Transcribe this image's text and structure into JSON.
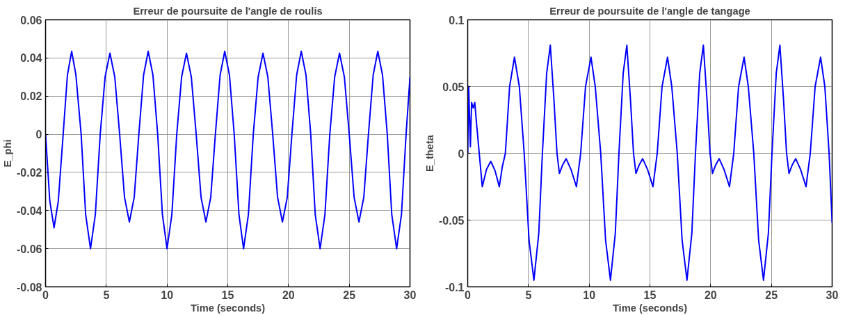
{
  "chart_data": [
    {
      "type": "line",
      "title": "Erreur de poursuite de l'angle de roulis",
      "xlabel": "Time (seconds)",
      "ylabel": "E_phi",
      "color": "#0000ff",
      "grid": true,
      "xlim": [
        0,
        30
      ],
      "ylim": [
        -0.08,
        0.06
      ],
      "xticks": [
        0,
        5,
        10,
        15,
        20,
        25,
        30
      ],
      "yticks": [
        {
          "value": -0.08,
          "label": "-0.08"
        },
        {
          "value": -0.06,
          "label": "-0.06"
        },
        {
          "value": -0.04,
          "label": "-0.04"
        },
        {
          "value": -0.02,
          "label": "-0.02"
        },
        0,
        {
          "value": 0.02,
          "label": "0.02"
        },
        {
          "value": 0.04,
          "label": "0.04"
        },
        {
          "value": 0.06,
          "label": "0.06"
        }
      ],
      "x": [
        0,
        0.35,
        0.7,
        1.05,
        1.45,
        1.8,
        2.15,
        2.5,
        2.93,
        3.3,
        3.7,
        4.1,
        4.5,
        4.9,
        5.3,
        5.7,
        6.1,
        6.5,
        6.9,
        7.3,
        7.68,
        8.07,
        8.45,
        8.84,
        9.23,
        9.62,
        10.0,
        10.4,
        10.8,
        11.2,
        11.6,
        12.0,
        12.4,
        12.8,
        13.2,
        13.6,
        13.98,
        14.37,
        14.75,
        15.14,
        15.53,
        15.92,
        16.3,
        16.7,
        17.1,
        17.5,
        17.9,
        18.3,
        18.7,
        19.1,
        19.5,
        19.9,
        20.28,
        20.67,
        21.05,
        21.44,
        21.83,
        22.2,
        22.6,
        23.0,
        23.4,
        23.8,
        24.2,
        24.6,
        25.0,
        25.4,
        25.8,
        26.2,
        26.58,
        26.97,
        27.35,
        27.74,
        28.13,
        28.5,
        28.9,
        29.3,
        29.68,
        30
      ],
      "values": [
        0,
        -0.035,
        -0.049,
        -0.035,
        0,
        0.031,
        0.0435,
        0.031,
        0,
        -0.042,
        -0.06,
        -0.042,
        0,
        0.03,
        0.0425,
        0.03,
        0,
        -0.033,
        -0.046,
        -0.033,
        0,
        0.031,
        0.0435,
        0.031,
        0,
        -0.042,
        -0.06,
        -0.042,
        0,
        0.03,
        0.0425,
        0.03,
        0,
        -0.033,
        -0.046,
        -0.033,
        0,
        0.031,
        0.0435,
        0.031,
        0,
        -0.042,
        -0.06,
        -0.042,
        0,
        0.03,
        0.0425,
        0.03,
        0,
        -0.033,
        -0.046,
        -0.033,
        0,
        0.031,
        0.0435,
        0.031,
        0,
        -0.042,
        -0.06,
        -0.042,
        0,
        0.03,
        0.0425,
        0.03,
        0,
        -0.033,
        -0.046,
        -0.033,
        0,
        0.031,
        0.0435,
        0.031,
        0,
        -0.042,
        -0.06,
        -0.042,
        0,
        0.03
      ]
    },
    {
      "type": "line",
      "title": "Erreur de poursuite de l'angle de tangage",
      "xlabel": "Time (seconds)",
      "ylabel": "E_theta",
      "color": "#0000ff",
      "grid": true,
      "xlim": [
        0,
        30
      ],
      "ylim": [
        -0.1,
        0.1
      ],
      "xticks": [
        0,
        5,
        10,
        15,
        20,
        25,
        30
      ],
      "yticks": [
        {
          "value": -0.1,
          "label": "-0.1"
        },
        {
          "value": -0.05,
          "label": "-0.05"
        },
        0,
        {
          "value": 0.05,
          "label": "0.05"
        },
        {
          "value": 0.1,
          "label": "0.1"
        }
      ],
      "x": [
        0,
        0.08,
        0.22,
        0.32,
        0.45,
        0.58,
        0.75,
        0.95,
        1.2,
        1.55,
        1.9,
        2.25,
        2.6,
        2.85,
        3.1,
        3.45,
        3.85,
        4.25,
        4.65,
        5.05,
        5.45,
        5.85,
        6.15,
        6.5,
        6.8,
        7.1,
        7.35,
        7.55,
        7.8,
        8.1,
        8.5,
        8.95,
        9.3,
        9.7,
        10.15,
        10.5,
        10.95,
        11.35,
        11.75,
        12.15,
        12.45,
        12.8,
        13.1,
        13.4,
        13.65,
        13.85,
        14.1,
        14.4,
        14.8,
        15.25,
        15.6,
        16.0,
        16.45,
        16.8,
        17.25,
        17.65,
        18.05,
        18.45,
        18.75,
        19.1,
        19.4,
        19.7,
        19.95,
        20.15,
        20.4,
        20.7,
        21.1,
        21.55,
        21.9,
        22.3,
        22.75,
        23.1,
        23.55,
        23.95,
        24.35,
        24.75,
        25.05,
        25.4,
        25.7,
        26.0,
        26.25,
        26.45,
        26.7,
        27.0,
        27.4,
        27.85,
        28.2,
        28.6,
        29.05,
        29.4,
        29.75,
        30
      ],
      "values": [
        0,
        0.05,
        0.005,
        0.038,
        0.034,
        0.038,
        0.02,
        0,
        -0.025,
        -0.012,
        -0.006,
        -0.013,
        -0.025,
        -0.01,
        0,
        0.05,
        0.072,
        0.05,
        0,
        -0.065,
        -0.095,
        -0.06,
        0,
        0.06,
        0.081,
        0.04,
        0,
        -0.015,
        -0.009,
        -0.004,
        -0.012,
        -0.025,
        0,
        0.05,
        0.072,
        0.05,
        0,
        -0.065,
        -0.095,
        -0.06,
        0,
        0.06,
        0.081,
        0.04,
        0,
        -0.015,
        -0.009,
        -0.004,
        -0.012,
        -0.025,
        0,
        0.05,
        0.072,
        0.05,
        0,
        -0.065,
        -0.095,
        -0.06,
        0,
        0.06,
        0.081,
        0.04,
        0,
        -0.015,
        -0.009,
        -0.004,
        -0.012,
        -0.025,
        0,
        0.05,
        0.072,
        0.05,
        0,
        -0.065,
        -0.095,
        -0.06,
        0,
        0.06,
        0.081,
        0.04,
        0,
        -0.015,
        -0.009,
        -0.004,
        -0.012,
        -0.025,
        0,
        0.05,
        0.072,
        0.05,
        0,
        -0.052
      ]
    }
  ]
}
